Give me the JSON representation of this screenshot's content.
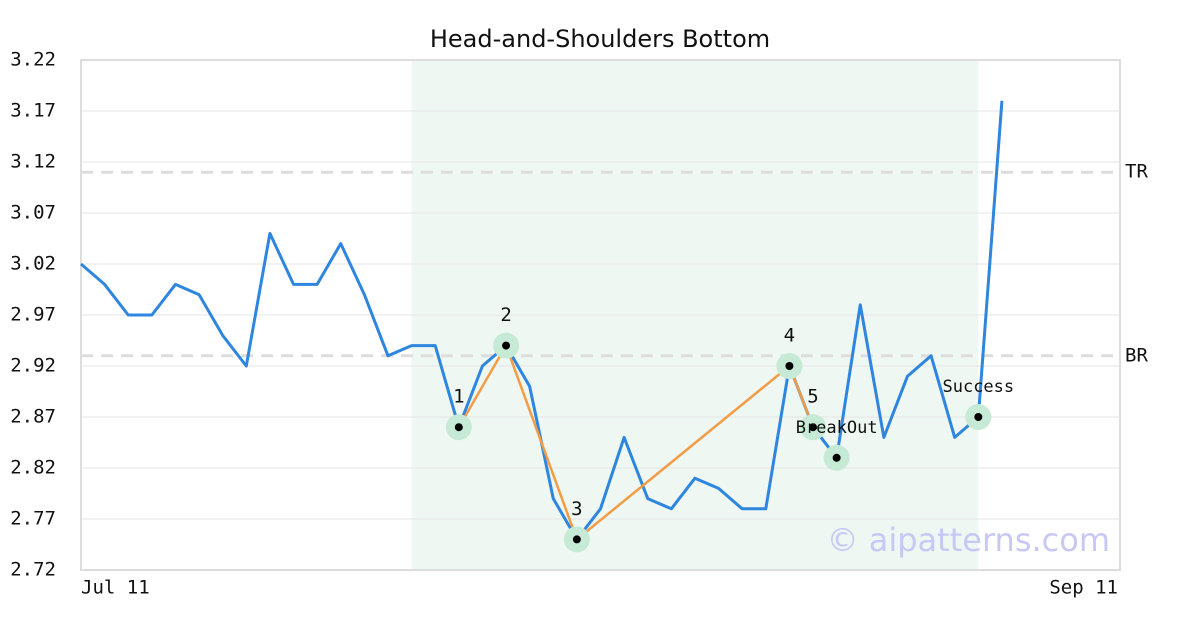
{
  "chart_data": {
    "type": "line",
    "title": "Head-and-Shoulders Bottom",
    "categories": [
      "Jul 11",
      null,
      null,
      null,
      null,
      null,
      null,
      null,
      null,
      null,
      null,
      null,
      null,
      null,
      null,
      null,
      null,
      null,
      null,
      null,
      null,
      null,
      null,
      null,
      null,
      null,
      null,
      null,
      null,
      null,
      null,
      null,
      null,
      null,
      null,
      null,
      null,
      null,
      null,
      null,
      null,
      null,
      null,
      null,
      "Sep 11"
    ],
    "series": [
      {
        "color": "#2e86de",
        "values": [
          3.02,
          3.0,
          2.97,
          2.97,
          3.0,
          2.99,
          2.95,
          2.92,
          3.05,
          3.0,
          3.0,
          3.04,
          2.99,
          2.93,
          2.94,
          2.94,
          2.86,
          2.92,
          2.94,
          2.9,
          2.79,
          2.75,
          2.78,
          2.85,
          2.79,
          2.78,
          2.81,
          2.8,
          2.78,
          2.78,
          2.92,
          2.86,
          2.83,
          2.98,
          2.85,
          2.91,
          2.93,
          2.85,
          2.87,
          3.18,
          null,
          null,
          null,
          null,
          null
        ]
      }
    ],
    "ylim": [
      2.72,
      3.22
    ],
    "yticks": [
      2.72,
      2.77,
      2.82,
      2.87,
      2.92,
      2.97,
      3.02,
      3.07,
      3.12,
      3.17,
      3.22
    ],
    "grid": true,
    "shaded_span": {
      "from": 14,
      "to": 38,
      "color": "#eef7f2"
    },
    "pattern_color": "#f39c45",
    "pattern_points": [
      {
        "label": "1",
        "index": 16,
        "value": 2.86
      },
      {
        "label": "2",
        "index": 18,
        "value": 2.94
      },
      {
        "label": "3",
        "index": 21,
        "value": 2.75
      },
      {
        "label": "4",
        "index": 30,
        "value": 2.92
      },
      {
        "label": "5",
        "index": 31,
        "value": 2.86
      }
    ],
    "event_points": [
      {
        "label": "BreakOut",
        "index": 32,
        "value": 2.83
      },
      {
        "label": "Success",
        "index": 38,
        "value": 2.87
      }
    ],
    "reference_lines": [
      {
        "label": "TR",
        "value": 3.11
      },
      {
        "label": "BR",
        "value": 2.93
      }
    ],
    "watermark": "© aipatterns.com"
  }
}
